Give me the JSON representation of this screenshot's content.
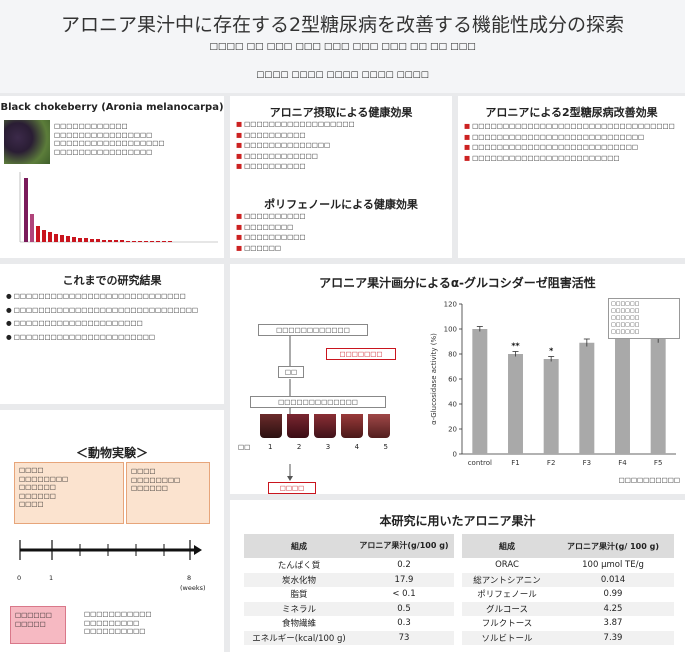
{
  "header": {
    "title": "アロニア果汁中に存在する2型糖尿病を改善する機能性成分の探索",
    "authors": "□□□□ □□ □□□ □□□ □□□ □□□ □□□ □□ □□ □□□",
    "affiliations": "□□□□ □□□□ □□□□ □□□□ □□□□"
  },
  "panel_black": {
    "title": "Black chokeberry (Aronia melanocarpa)",
    "lines": [
      "□□□□□□□□□□□□",
      "□□□□□□□□□□□□□□□□",
      "□□□□□□□□□□□□□□□□□□",
      "□□□□□□□□□□□□□□□□"
    ]
  },
  "panel_intake": {
    "title": "アロニア摂取による健康効果",
    "items": [
      "□□□□□□□□□□□□□□□□□□",
      "□□□□□□□□□□",
      "□□□□□□□□□□□□□□",
      "□□□□□□□□□□□□",
      "□□□□□□□□□□"
    ]
  },
  "panel_polyphenol": {
    "title": "ポリフェノールによる健康効果",
    "items": [
      "□□□□□□□□□□",
      "□□□□□□□□",
      "□□□□□□□□□□",
      "□□□□□□"
    ]
  },
  "panel_t2d": {
    "title": "アロニアによる2型糖尿病改善効果",
    "items": [
      "□□□□□□□□□□□□□□□□□□□□□□□□□□□□□□□□□",
      "□□□□□□□□□□□□□□□□□□□□□□□□□□□□",
      "□□□□□□□□□□□□□□□□□□□□□□□□□□□",
      "□□□□□□□□□□□□□□□□□□□□□□□□"
    ]
  },
  "panel_prev": {
    "title": "これまでの研究結果",
    "items": [
      "□□□□□□□□□□□□□□□□□□□□□□□□□□□□",
      "□□□□□□□□□□□□□□□□□□□□□□□□□□□□□□",
      "□□□□□□□□□□□□□□□□□□□□□",
      "□□□□□□□□□□□□□□□□□□□□□□□"
    ]
  },
  "panel_animal": {
    "title": "＜動物実験＞",
    "group_box": [
      "□□□□",
      "□□□□□□□□",
      "□□□□□□",
      "□□□□□□",
      "□□□□"
    ],
    "dissect_box": [
      "□□□□",
      "□□□□□□□□",
      "□□□□□□"
    ],
    "t0": "0",
    "t1": "1",
    "t8": "8",
    "weeks": "(weeks)",
    "mouse_box": [
      "□□□□□□",
      "□□□□□"
    ],
    "notes": [
      "□□□□□□□□□□□",
      "□□□□□□□□□",
      "□□□□□□□□□□"
    ]
  },
  "panel_alpha": {
    "title": "アロニア果汁画分によるα-グルコシダーゼ阻害活性",
    "flow": {
      "column": "□□□□□□□□□□□□",
      "juice": "□□□□□□□",
      "wash": "□□",
      "elute": "□□□□□□□□□□□□□",
      "fraction_label": "□□",
      "fraction_nums": [
        "1",
        "2",
        "3",
        "4",
        "5"
      ],
      "concentrate": "□□□□"
    },
    "legend_lines": [
      "□□□□□□",
      "□□□□□□",
      "□□□□□□",
      "□□□□□□",
      "□□□□□□"
    ],
    "note": "□□□□□□□□□□"
  },
  "chart_data": {
    "type": "bar",
    "categories": [
      "control",
      "F1",
      "F2",
      "F3",
      "F4",
      "F5"
    ],
    "values": [
      100,
      80,
      76,
      89,
      94,
      92
    ],
    "errors": [
      2,
      2,
      2,
      3,
      2,
      3
    ],
    "significance": [
      "",
      "**",
      "*",
      "",
      "",
      ""
    ],
    "ylabel": "α-Glucosidase activity (%)",
    "ylim": [
      0,
      120
    ],
    "yticks": [
      0,
      20,
      40,
      60,
      80,
      100,
      120
    ],
    "bar_color": "#a9a9a9"
  },
  "panel_comp": {
    "title": "本研究に用いたアロニア果汁",
    "left_headers": [
      "組成",
      "アロニア果汁(g/100 g)"
    ],
    "left_rows": [
      [
        "たんぱく質",
        "0.2"
      ],
      [
        "炭水化物",
        "17.9"
      ],
      [
        "脂質",
        "< 0.1"
      ],
      [
        "ミネラル",
        "0.5"
      ],
      [
        "食物繊維",
        "0.3"
      ],
      [
        "エネルギー(kcal/100 g)",
        "73"
      ]
    ],
    "right_headers": [
      "組成",
      "アロニア果汁(g/ 100 g)"
    ],
    "right_rows": [
      [
        "ORAC",
        "100 μmol TE/g"
      ],
      [
        "総アントシアニン",
        "0.014"
      ],
      [
        "ポリフェノール",
        "0.99"
      ],
      [
        "グルコース",
        "4.25"
      ],
      [
        "フルクトース",
        "3.87"
      ],
      [
        "ソルビトール",
        "7.39"
      ]
    ]
  },
  "colors": {
    "accent": "#c9151e",
    "bullet": "#c22",
    "panel": "#ffffff",
    "background": "#e9eaec"
  }
}
